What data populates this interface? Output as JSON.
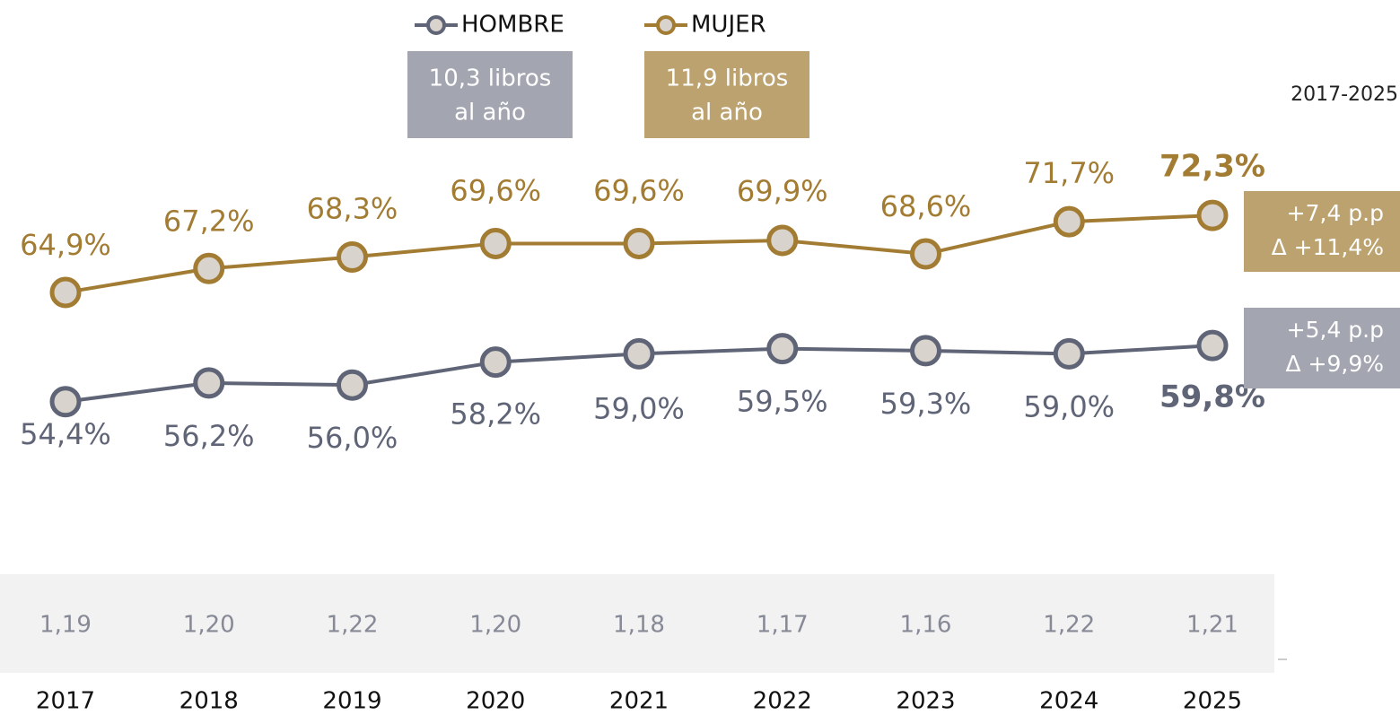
{
  "chart_data": {
    "type": "line",
    "subtitle": "2017-2025",
    "categories": [
      "2017",
      "2018",
      "2019",
      "2020",
      "2021",
      "2022",
      "2023",
      "2024",
      "2025"
    ],
    "ylim": [
      38,
      93
    ],
    "series": [
      {
        "name": "HOMBRE",
        "color": "#5f6577",
        "values": [
          54.4,
          56.2,
          56.0,
          58.2,
          59.0,
          59.5,
          59.3,
          59.0,
          59.8
        ],
        "value_labels": [
          "54,4%",
          "56,2%",
          "56,0%",
          "58,2%",
          "59,0%",
          "59,5%",
          "59,3%",
          "59,0%",
          "59,8%"
        ],
        "box": [
          "10,3 libros",
          "al año"
        ],
        "box_color": "#a3a6b0",
        "change": [
          "+5,4 p.p",
          "Δ +9,9%"
        ]
      },
      {
        "name": "MUJER",
        "color": "#a37c33",
        "values": [
          64.9,
          67.2,
          68.3,
          69.6,
          69.6,
          69.9,
          68.6,
          71.7,
          72.3
        ],
        "value_labels": [
          "64,9%",
          "67,2%",
          "68,3%",
          "69,6%",
          "69,6%",
          "69,9%",
          "68,6%",
          "71,7%",
          "72,3%"
        ],
        "box": [
          "11,9 libros",
          "al año"
        ],
        "box_color": "#bca26e",
        "change": [
          "+7,4 p.p",
          "Δ +11,4%"
        ]
      }
    ],
    "marker_fill": "#d8d3cc",
    "ratio_row": [
      "1,19",
      "1,20",
      "1,22",
      "1,20",
      "1,18",
      "1,17",
      "1,16",
      "1,22",
      "1,21"
    ]
  }
}
